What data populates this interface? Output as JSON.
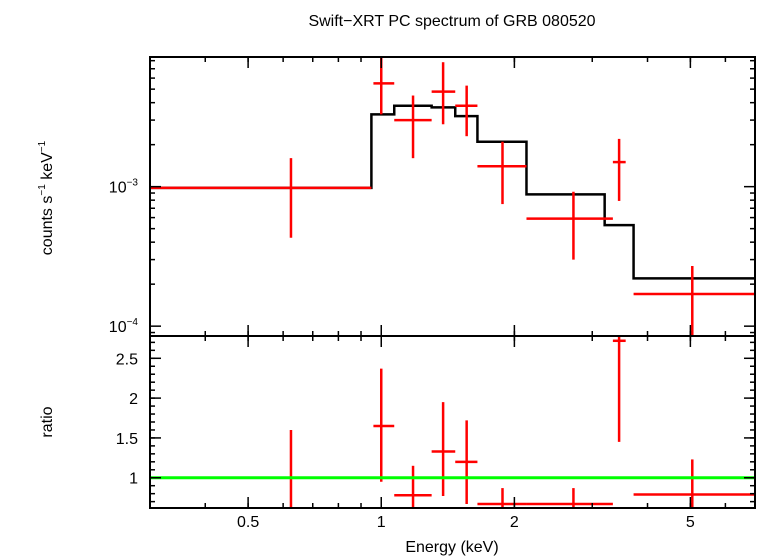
{
  "chart_data": {
    "title": "Swift−XRT PC spectrum of GRB 080520",
    "xlabel": "Energy (keV)",
    "x_scale": "log",
    "xlim": [
      0.3,
      7.0
    ],
    "x_ticks": [
      {
        "value": 0.5,
        "label": "0.5"
      },
      {
        "value": 1,
        "label": "1"
      },
      {
        "value": 2,
        "label": "2"
      },
      {
        "value": 5,
        "label": "5"
      }
    ],
    "colors": {
      "data": "#ff0000",
      "model": "#000000",
      "ratio_line": "#00ff00",
      "frame": "#000000"
    },
    "panels": [
      {
        "name": "spectrum",
        "type": "scatter",
        "y_scale": "log",
        "ylabel_main": "counts s",
        "ylabel_sup1": "−1",
        "ylabel_mid": " keV",
        "ylabel_sup2": "−1",
        "ylim": [
          8.5e-05,
          0.0085
        ],
        "y_ticks": [
          {
            "value": 0.001,
            "base": "10",
            "exp": "−3"
          },
          {
            "value": 0.0001,
            "base": "10",
            "exp": "−4"
          }
        ],
        "model": {
          "type": "step",
          "edges": [
            0.3,
            0.95,
            1.07,
            1.3,
            1.47,
            1.65,
            2.13,
            3.2,
            3.72,
            7.0
          ],
          "values": [
            0.00098,
            0.0033,
            0.0038,
            0.0037,
            0.0032,
            0.0021,
            0.00088,
            0.00053,
            0.00022
          ]
        },
        "points": [
          {
            "x": 0.625,
            "xlo": 0.3,
            "xhi": 0.95,
            "y": 0.00098,
            "ylo": 0.00043,
            "yhi": 0.0016
          },
          {
            "x": 1.0,
            "xlo": 0.96,
            "xhi": 1.07,
            "y": 0.0055,
            "ylo": 0.0033,
            "yhi": 0.0085
          },
          {
            "x": 1.18,
            "xlo": 1.07,
            "xhi": 1.3,
            "y": 0.003,
            "ylo": 0.0016,
            "yhi": 0.0045
          },
          {
            "x": 1.38,
            "xlo": 1.3,
            "xhi": 1.47,
            "y": 0.0048,
            "ylo": 0.0028,
            "yhi": 0.0078
          },
          {
            "x": 1.56,
            "xlo": 1.47,
            "xhi": 1.65,
            "y": 0.0038,
            "ylo": 0.0023,
            "yhi": 0.0053
          },
          {
            "x": 1.88,
            "xlo": 1.65,
            "xhi": 2.13,
            "y": 0.0014,
            "ylo": 0.00075,
            "yhi": 0.0021
          },
          {
            "x": 2.72,
            "xlo": 2.13,
            "xhi": 3.34,
            "y": 0.00059,
            "ylo": 0.0003,
            "yhi": 0.00092
          },
          {
            "x": 3.45,
            "xlo": 3.34,
            "xhi": 3.57,
            "y": 0.0015,
            "ylo": 0.00079,
            "yhi": 0.0022
          },
          {
            "x": 5.05,
            "xlo": 3.72,
            "xhi": 7.0,
            "y": 0.00017,
            "ylo": 8.5e-05,
            "yhi": 0.00027
          }
        ]
      },
      {
        "name": "ratio",
        "type": "scatter",
        "y_scale": "linear",
        "ylabel": "ratio",
        "ylim": [
          0.62,
          2.78
        ],
        "y_ticks": [
          {
            "value": 1,
            "label": "1"
          },
          {
            "value": 1.5,
            "label": "1.5"
          },
          {
            "value": 2,
            "label": "2"
          },
          {
            "value": 2.5,
            "label": "2.5"
          }
        ],
        "reference": 1,
        "points": [
          {
            "x": 0.625,
            "xlo": 0.3,
            "xhi": 0.95,
            "y": 1.0,
            "ylo": 0.62,
            "yhi": 1.6
          },
          {
            "x": 1.0,
            "xlo": 0.96,
            "xhi": 1.07,
            "y": 1.65,
            "ylo": 0.95,
            "yhi": 2.37
          },
          {
            "x": 1.18,
            "xlo": 1.07,
            "xhi": 1.3,
            "y": 0.78,
            "ylo": 0.62,
            "yhi": 1.15
          },
          {
            "x": 1.38,
            "xlo": 1.3,
            "xhi": 1.47,
            "y": 1.33,
            "ylo": 0.77,
            "yhi": 1.95
          },
          {
            "x": 1.56,
            "xlo": 1.47,
            "xhi": 1.65,
            "y": 1.2,
            "ylo": 0.67,
            "yhi": 1.72
          },
          {
            "x": 1.88,
            "xlo": 1.65,
            "xhi": 2.13,
            "y": 0.67,
            "ylo": 0.62,
            "yhi": 0.87
          },
          {
            "x": 2.72,
            "xlo": 2.13,
            "xhi": 3.34,
            "y": 0.67,
            "ylo": 0.62,
            "yhi": 0.87
          },
          {
            "x": 3.45,
            "xlo": 3.34,
            "xhi": 3.57,
            "y": 2.72,
            "ylo": 1.45,
            "yhi": 2.78
          },
          {
            "x": 5.05,
            "xlo": 3.72,
            "xhi": 7.0,
            "y": 0.79,
            "ylo": 0.62,
            "yhi": 1.23
          }
        ]
      }
    ]
  }
}
